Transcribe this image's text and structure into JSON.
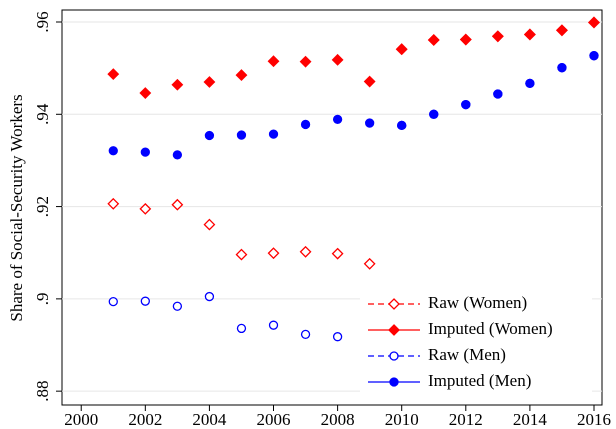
{
  "chart_data": {
    "type": "line",
    "y_label": "Share of Social-Security Workers",
    "x": [
      2001,
      2002,
      2003,
      2004,
      2005,
      2006,
      2007,
      2008,
      2009,
      2010,
      2011,
      2012,
      2013,
      2014,
      2015,
      2016
    ],
    "xlim": [
      1999.4,
      2016.25
    ],
    "xticks": [
      2000,
      2002,
      2004,
      2006,
      2008,
      2010,
      2012,
      2014,
      2016
    ],
    "ylim": [
      0.877,
      0.9626
    ],
    "yticks": [
      {
        "value": 0.88,
        "label": ".88"
      },
      {
        "value": 0.9,
        "label": ".9"
      },
      {
        "value": 0.92,
        "label": ".92"
      },
      {
        "value": 0.94,
        "label": ".94"
      },
      {
        "value": 0.96,
        "label": ".96"
      }
    ],
    "grid": true,
    "legend": "lower right",
    "series": [
      {
        "name": "Raw (Women)",
        "color": "#ff0000",
        "marker": "diamond-open",
        "dash": true,
        "values": [
          0.9206,
          0.9195,
          0.9204,
          0.9161,
          0.9096,
          0.9099,
          0.9102,
          0.9098,
          0.9076,
          0.9541,
          0.9561,
          0.9562,
          0.9569,
          0.9573,
          0.9582,
          0.9599
        ]
      },
      {
        "name": "Imputed (Women)",
        "color": "#ff0000",
        "marker": "diamond",
        "dash": false,
        "values": [
          0.9487,
          0.9446,
          0.9464,
          0.947,
          0.9485,
          0.9515,
          0.9514,
          0.9518,
          0.9471,
          0.9541,
          0.9561,
          0.9562,
          0.9569,
          0.9573,
          0.9582,
          0.9599
        ]
      },
      {
        "name": "Raw (Men)",
        "color": "#0000ff",
        "marker": "circle-open",
        "dash": true,
        "values": [
          0.8994,
          0.8995,
          0.8984,
          0.9005,
          0.8936,
          0.8943,
          0.8923,
          0.8918,
          0.8885,
          0.9376,
          0.94,
          0.9421,
          0.9444,
          0.9467,
          0.9501,
          0.9527
        ]
      },
      {
        "name": "Imputed (Men)",
        "color": "#0000ff",
        "marker": "circle",
        "dash": false,
        "values": [
          0.9321,
          0.9318,
          0.9312,
          0.9354,
          0.9355,
          0.9357,
          0.9378,
          0.9389,
          0.9381,
          0.9376,
          0.94,
          0.9421,
          0.9444,
          0.9467,
          0.9501,
          0.9527
        ]
      }
    ]
  }
}
